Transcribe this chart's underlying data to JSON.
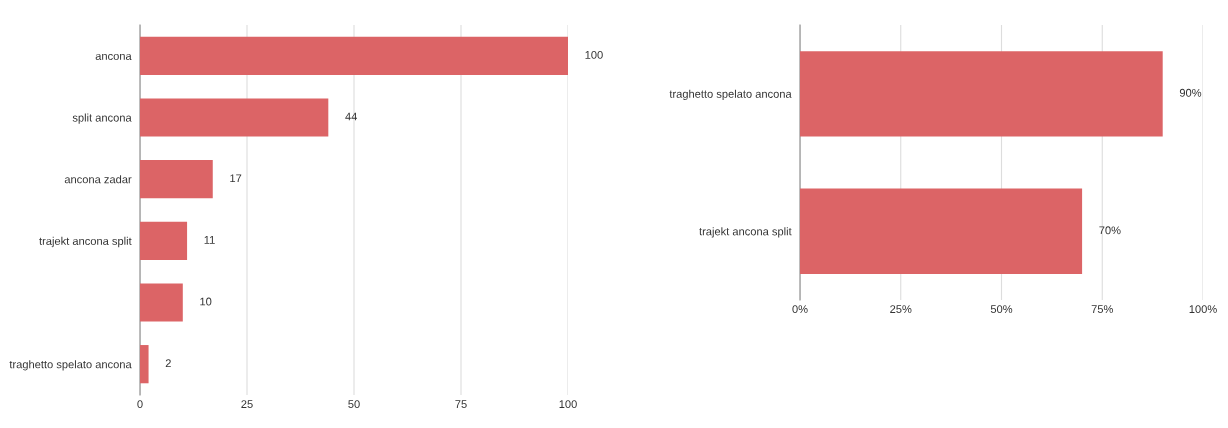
{
  "chart_data": [
    {
      "type": "bar",
      "orientation": "horizontal",
      "categories": [
        "ancona",
        "split ancona",
        "ancona zadar",
        "trajekt ancona split",
        null,
        "traghetto spelato ancona"
      ],
      "values": [
        100,
        44,
        17,
        11,
        10,
        2
      ],
      "color": "#dc6466",
      "xlim": [
        0,
        100
      ],
      "xticks": [
        0,
        25,
        50,
        75,
        100
      ],
      "grid": "x",
      "data_labels": true
    },
    {
      "type": "bar",
      "orientation": "horizontal",
      "categories": [
        "traghetto spelato ancona",
        "trajekt ancona split"
      ],
      "values": [
        90,
        70
      ],
      "value_labels": [
        "90%",
        "70%"
      ],
      "color": "#dc6466",
      "xlim": [
        0,
        100
      ],
      "xticks": [
        {
          "value": 0,
          "label": "0%"
        },
        {
          "value": 25,
          "label": "25%"
        },
        {
          "value": 50,
          "label": "50%"
        },
        {
          "value": 75,
          "label": "75%"
        },
        {
          "value": 100,
          "label": "100%"
        }
      ],
      "grid": "x"
    }
  ]
}
